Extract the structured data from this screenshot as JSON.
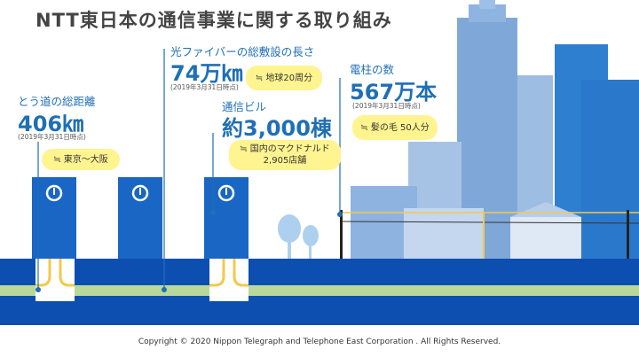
{
  "title": "NTT東日本の通信事業に関する取り組み",
  "stats": [
    {
      "label": "とう道の総距離",
      "value": "406㎞",
      "date": "(2019年3月31日時点)",
      "note": "≒ 東京～大阪"
    },
    {
      "label": "光ファイバーの総敷設の長さ",
      "value": "74万㎞",
      "date": "(2019年3月31日時点)",
      "note": "≒ 地球20周分"
    },
    {
      "label": "通信ビル",
      "value": "約3,000棟",
      "note_line1": "≒ 国内のマクドナルド",
      "note_line2": "2,905店舗"
    },
    {
      "label": "電柱の数",
      "value": "567万本",
      "date": "(2019年3月31日時点)",
      "note": "≒ 髪の毛 50人分"
    }
  ],
  "footer": "Copyright © 2020 Nippon Telegraph and Telephone East Corporation . All Rights Reserved.",
  "colors": {
    "underground": "#0d4fb0",
    "building": "#1a66c4",
    "pill": "#fff48f",
    "accent": "#1f6fb5"
  },
  "icons": [
    "ntt-logo-icon",
    "tree-icon",
    "city-skyline",
    "utility-pole"
  ]
}
